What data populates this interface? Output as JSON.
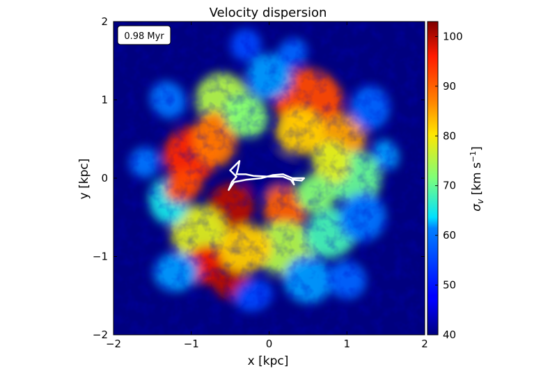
{
  "chart_data": {
    "type": "heatmap",
    "title": "Velocity dispersion",
    "xlabel": "x [kpc]",
    "ylabel": "y [kpc]",
    "xlim": [
      -2,
      2
    ],
    "ylim": [
      -2,
      2
    ],
    "xticks": [
      -2,
      -1,
      0,
      1,
      2
    ],
    "yticks": [
      -2,
      -1,
      0,
      1,
      2
    ],
    "xtick_labels": [
      "−2",
      "−1",
      "0",
      "1",
      "2"
    ],
    "ytick_labels": [
      "−2",
      "−1",
      "0",
      "1",
      "2"
    ],
    "annotation": "0.98 Myr",
    "colorbar": {
      "label": "σ_v [km s⁻¹]",
      "label_parts": [
        "σ",
        "v",
        " [km s",
        "−1",
        "]"
      ],
      "range": [
        40,
        103
      ],
      "ticks": [
        40,
        50,
        60,
        70,
        80,
        90,
        100
      ],
      "colormap": "jet"
    },
    "background_color": "#00007f",
    "contour_color": "#ffffff",
    "regions": [
      {
        "x": 0.0,
        "y": 0.05,
        "r": 0.35,
        "value": 40
      },
      {
        "x": -0.6,
        "y": 1.0,
        "r": 0.35,
        "value": 75
      },
      {
        "x": 0.5,
        "y": 1.0,
        "r": 0.4,
        "value": 92
      },
      {
        "x": 0.9,
        "y": 0.5,
        "r": 0.35,
        "value": 85
      },
      {
        "x": -1.0,
        "y": 0.3,
        "r": 0.35,
        "value": 95
      },
      {
        "x": -0.7,
        "y": 0.5,
        "r": 0.35,
        "value": 88
      },
      {
        "x": 1.1,
        "y": 0.0,
        "r": 0.35,
        "value": 70
      },
      {
        "x": -0.5,
        "y": -0.4,
        "r": 0.3,
        "value": 100
      },
      {
        "x": 0.2,
        "y": -0.4,
        "r": 0.3,
        "value": 90
      },
      {
        "x": -0.9,
        "y": -0.7,
        "r": 0.35,
        "value": 78
      },
      {
        "x": -0.8,
        "y": -1.1,
        "r": 0.3,
        "value": 97
      },
      {
        "x": -0.5,
        "y": -1.3,
        "r": 0.25,
        "value": 100
      },
      {
        "x": 0.2,
        "y": -0.9,
        "r": 0.35,
        "value": 75
      },
      {
        "x": 0.8,
        "y": -0.7,
        "r": 0.35,
        "value": 68
      },
      {
        "x": 1.2,
        "y": -0.5,
        "r": 0.3,
        "value": 60
      },
      {
        "x": -1.3,
        "y": -0.3,
        "r": 0.3,
        "value": 65
      },
      {
        "x": 0.0,
        "y": 1.3,
        "r": 0.3,
        "value": 62
      },
      {
        "x": 1.3,
        "y": 0.9,
        "r": 0.25,
        "value": 58
      },
      {
        "x": -1.3,
        "y": 1.0,
        "r": 0.25,
        "value": 60
      },
      {
        "x": 0.5,
        "y": -1.3,
        "r": 0.3,
        "value": 62
      },
      {
        "x": -0.2,
        "y": -1.5,
        "r": 0.25,
        "value": 55
      },
      {
        "x": 1.0,
        "y": -1.3,
        "r": 0.25,
        "value": 58
      },
      {
        "x": -1.2,
        "y": -1.2,
        "r": 0.25,
        "value": 62
      },
      {
        "x": 0.3,
        "y": 1.6,
        "r": 0.2,
        "value": 58
      },
      {
        "x": -0.3,
        "y": 1.7,
        "r": 0.2,
        "value": 55
      },
      {
        "x": 1.5,
        "y": 0.3,
        "r": 0.2,
        "value": 62
      },
      {
        "x": -1.6,
        "y": 0.2,
        "r": 0.2,
        "value": 60
      },
      {
        "x": 0.8,
        "y": 0.2,
        "r": 0.25,
        "value": 78
      },
      {
        "x": -0.3,
        "y": 0.8,
        "r": 0.3,
        "value": 72
      },
      {
        "x": 0.4,
        "y": 0.6,
        "r": 0.3,
        "value": 82
      },
      {
        "x": -1.1,
        "y": -0.1,
        "r": 0.25,
        "value": 92
      },
      {
        "x": 0.6,
        "y": -0.2,
        "r": 0.25,
        "value": 72
      },
      {
        "x": -0.3,
        "y": -0.9,
        "r": 0.3,
        "value": 82
      }
    ],
    "contour_path": [
      [
        -0.38,
        0.22
      ],
      [
        -0.4,
        0.12
      ],
      [
        -0.42,
        0.05
      ],
      [
        -0.3,
        0.05
      ],
      [
        -0.2,
        0.03
      ],
      [
        0.0,
        0.02
      ],
      [
        0.18,
        0.02
      ],
      [
        0.28,
        -0.02
      ],
      [
        0.32,
        -0.08
      ],
      [
        0.3,
        -0.02
      ],
      [
        0.42,
        -0.03
      ],
      [
        0.45,
        0.0
      ],
      [
        0.3,
        0.0
      ],
      [
        0.18,
        0.05
      ],
      [
        0.05,
        0.04
      ],
      [
        -0.1,
        0.0
      ],
      [
        -0.3,
        -0.02
      ],
      [
        -0.45,
        -0.05
      ],
      [
        -0.52,
        -0.15
      ],
      [
        -0.48,
        -0.05
      ],
      [
        -0.42,
        0.02
      ],
      [
        -0.5,
        0.1
      ],
      [
        -0.45,
        0.15
      ],
      [
        -0.38,
        0.22
      ]
    ]
  }
}
